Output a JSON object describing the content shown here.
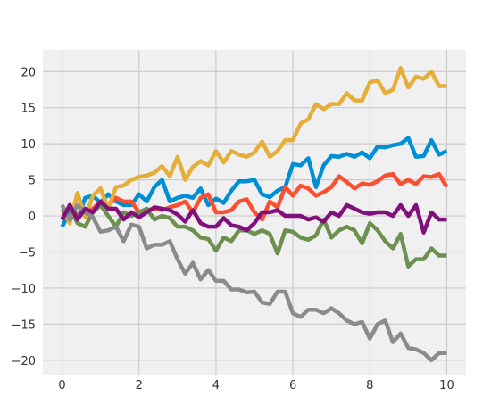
{
  "chart_data": {
    "type": "line",
    "style": "fivethirtyeight",
    "title": "",
    "xlabel": "",
    "ylabel": "",
    "grid": true,
    "legend": "none",
    "background": "#f0f0f0",
    "xlim": [
      -0.5,
      10.5
    ],
    "ylim": [
      -22,
      23
    ],
    "xticks": [
      {
        "value": 0,
        "label": "0"
      },
      {
        "value": 2,
        "label": "2"
      },
      {
        "value": 4,
        "label": "4"
      },
      {
        "value": 6,
        "label": "6"
      },
      {
        "value": 8,
        "label": "8"
      },
      {
        "value": 10,
        "label": "10"
      }
    ],
    "yticks": [
      {
        "value": -20,
        "label": "−20"
      },
      {
        "value": -15,
        "label": "−15"
      },
      {
        "value": -10,
        "label": "−10"
      },
      {
        "value": -5,
        "label": "−5"
      },
      {
        "value": 0,
        "label": "0"
      },
      {
        "value": 5,
        "label": "5"
      },
      {
        "value": 10,
        "label": "10"
      },
      {
        "value": 15,
        "label": "15"
      },
      {
        "value": 20,
        "label": "20"
      }
    ],
    "x": [
      0,
      0.2,
      0.4,
      0.6,
      0.8,
      1.0,
      1.2,
      1.4,
      1.6,
      1.8,
      2.0,
      2.2,
      2.4,
      2.6,
      2.8,
      3.0,
      3.2,
      3.4,
      3.6,
      3.8,
      4.0,
      4.2,
      4.4,
      4.6,
      4.8,
      5.0,
      5.2,
      5.4,
      5.6,
      5.8,
      6.0,
      6.2,
      6.4,
      6.6,
      6.8,
      7.0,
      7.2,
      7.4,
      7.6,
      7.8,
      8.0,
      8.2,
      8.4,
      8.6,
      8.8,
      9.0,
      9.2,
      9.4,
      9.6,
      9.8,
      10.0
    ],
    "series": [
      {
        "color": "#008fd5",
        "values": [
          -1.5,
          0.5,
          -0.5,
          2.5,
          2.8,
          1.8,
          3.0,
          2.0,
          1.5,
          1.5,
          3.0,
          2.0,
          4.0,
          5.0,
          2.0,
          2.5,
          2.8,
          2.5,
          3.8,
          1.5,
          2.4,
          1.8,
          3.5,
          4.8,
          4.8,
          5.0,
          3.0,
          2.6,
          3.5,
          4.0,
          7.2,
          7.0,
          8.0,
          4.0,
          7.0,
          8.3,
          8.2,
          8.6,
          8.2,
          8.8,
          8.0,
          9.6,
          9.5,
          9.8,
          10.0,
          10.8,
          8.2,
          8.3,
          10.5,
          8.5,
          9.0
        ]
      },
      {
        "color": "#fc4f30",
        "values": [
          -0.5,
          1.5,
          0.0,
          0.5,
          1.0,
          2.0,
          1.5,
          2.5,
          2.0,
          2.0,
          0.5,
          0.8,
          1.0,
          0.8,
          1.2,
          1.5,
          2.0,
          0.5,
          2.5,
          3.0,
          0.5,
          0.5,
          0.8,
          2.0,
          2.3,
          0.5,
          -0.5,
          2.0,
          1.2,
          4.0,
          2.8,
          4.2,
          3.8,
          2.8,
          3.3,
          4.0,
          5.5,
          4.7,
          3.8,
          4.5,
          4.3,
          4.8,
          5.6,
          5.8,
          4.4,
          5.0,
          4.4,
          5.5,
          5.4,
          5.8,
          4.0
        ]
      },
      {
        "color": "#e5ae38",
        "values": [
          1.0,
          -1.0,
          3.2,
          -0.2,
          2.8,
          3.8,
          1.0,
          4.0,
          4.2,
          5.0,
          5.4,
          5.6,
          6.0,
          6.9,
          5.5,
          8.2,
          5.0,
          6.8,
          7.6,
          7.0,
          9.0,
          7.4,
          9.0,
          8.5,
          8.2,
          8.8,
          10.3,
          8.2,
          9.0,
          10.5,
          10.5,
          12.8,
          13.4,
          15.5,
          14.8,
          15.5,
          15.5,
          17.0,
          16.0,
          16.0,
          18.5,
          18.8,
          17.0,
          17.5,
          20.5,
          17.8,
          19.3,
          19.0,
          20.0,
          18.0,
          18.0
        ]
      },
      {
        "color": "#6d904f",
        "values": [
          0.5,
          1.0,
          -1.0,
          -1.5,
          0.5,
          1.5,
          0.0,
          -1.5,
          0.5,
          0.0,
          0.5,
          1.0,
          -0.5,
          0.0,
          -0.3,
          -1.5,
          -1.5,
          -2.0,
          -3.0,
          -3.2,
          -4.8,
          -3.0,
          -3.5,
          -2.0,
          -2.0,
          -2.5,
          -2.0,
          -2.5,
          -5.2,
          -2.0,
          -2.2,
          -3.0,
          -3.3,
          -2.7,
          -0.5,
          -3.0,
          -2.0,
          -1.5,
          -2.0,
          -3.8,
          -1.0,
          -2.0,
          -3.5,
          -4.5,
          -2.5,
          -7.0,
          -6.0,
          -6.0,
          -4.5,
          -5.5,
          -5.5
        ]
      },
      {
        "color": "#8b8b8b",
        "values": [
          1.5,
          -0.5,
          1.5,
          0.5,
          -0.2,
          -2.2,
          -2.0,
          -1.5,
          -3.5,
          -1.2,
          -1.5,
          -4.5,
          -4.0,
          -4.0,
          -3.5,
          -6.0,
          -8.0,
          -6.5,
          -8.8,
          -7.5,
          -9.0,
          -9.0,
          -10.2,
          -10.2,
          -10.6,
          -10.5,
          -12.0,
          -12.2,
          -10.5,
          -10.5,
          -13.5,
          -14.0,
          -13.0,
          -13.0,
          -13.5,
          -12.8,
          -13.5,
          -14.5,
          -15.0,
          -14.7,
          -17.0,
          -15.0,
          -14.5,
          -17.5,
          -16.3,
          -18.3,
          -18.5,
          -19.0,
          -20.0,
          -19.0,
          -19.0
        ]
      },
      {
        "color": "#810f7c",
        "values": [
          -0.5,
          1.5,
          -0.5,
          1.0,
          0.5,
          2.0,
          1.0,
          1.0,
          -0.5,
          0.5,
          -0.2,
          0.5,
          1.2,
          1.0,
          0.8,
          0.2,
          -0.8,
          0.8,
          -1.0,
          -1.5,
          -1.5,
          -0.3,
          -1.3,
          -1.5,
          -2.0,
          -1.0,
          0.5,
          0.5,
          0.8,
          0.0,
          0.0,
          0.0,
          -0.5,
          -0.2,
          -0.8,
          0.5,
          0.0,
          1.5,
          1.0,
          0.5,
          0.3,
          0.5,
          0.5,
          0.0,
          1.5,
          0.0,
          1.5,
          -2.3,
          0.5,
          -0.5,
          -0.5
        ]
      }
    ]
  }
}
